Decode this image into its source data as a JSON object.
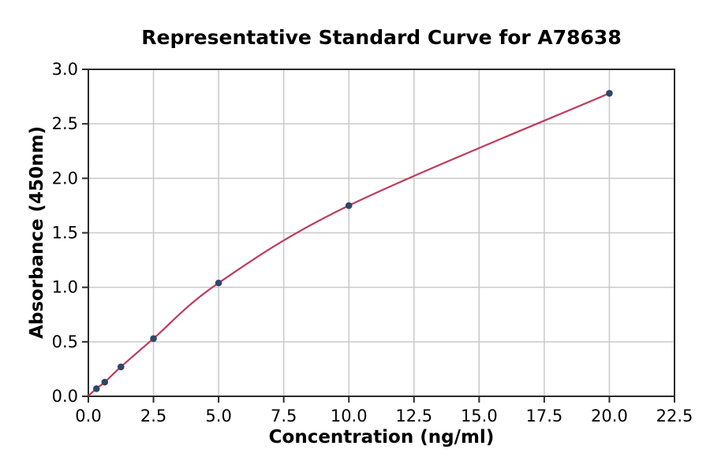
{
  "chart_data": {
    "type": "scatter",
    "title": "Representative Standard Curve for A78638",
    "xlabel": "Concentration (ng/ml)",
    "ylabel": "Absorbance (450nm)",
    "xlim": [
      0,
      22.5
    ],
    "ylim": [
      0,
      3.0
    ],
    "xtick_labels": [
      "0.0",
      "2.5",
      "5.0",
      "7.5",
      "10.0",
      "12.5",
      "15.0",
      "17.5",
      "20.0",
      "22.5"
    ],
    "ytick_labels": [
      "0.0",
      "0.5",
      "1.0",
      "1.5",
      "2.0",
      "2.5",
      "3.0"
    ],
    "grid": true,
    "legend": "none",
    "series": [
      {
        "name": "standard-curve",
        "x": [
          0.31,
          0.63,
          1.25,
          2.5,
          5,
          10,
          20
        ],
        "y": [
          0.07,
          0.13,
          0.27,
          0.53,
          1.04,
          1.75,
          2.78
        ],
        "curve_origin": [
          0,
          0.005
        ]
      }
    ],
    "colors": {
      "line": "#c03a5c",
      "marker": "#30466a",
      "grid": "#c9c9c9",
      "spine": "#2b2b2b",
      "text": "#000000",
      "background": "#ffffff"
    }
  }
}
